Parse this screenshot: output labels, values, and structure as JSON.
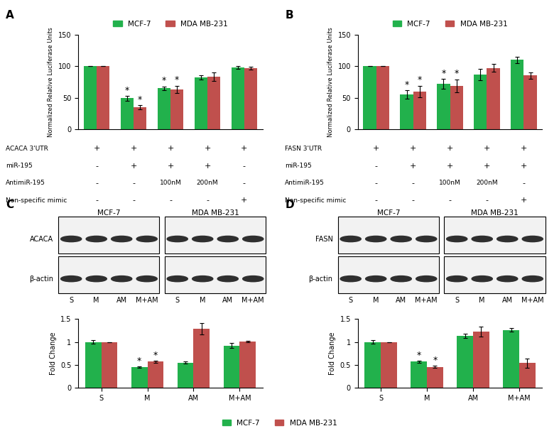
{
  "chart_data": [
    {
      "type": "bar",
      "panel_label": "A",
      "ylabel": "Normalized Relative Luciferase Units",
      "ylim": [
        0,
        150
      ],
      "yticks": [
        0,
        50,
        100,
        150
      ],
      "legend": "upper center",
      "tick_labels": "y",
      "significance_mark": "*",
      "series": [
        {
          "name": "MCF-7",
          "color": "#22b14c",
          "values": [
            100,
            49,
            65,
            82,
            98
          ],
          "errors": [
            0,
            4,
            3,
            3,
            2
          ],
          "significant": [
            1,
            2
          ]
        },
        {
          "name": "MDA MB-231",
          "color": "#c0504d",
          "values": [
            100,
            35,
            63,
            83,
            97
          ],
          "errors": [
            0,
            3,
            6,
            7,
            2
          ],
          "significant": [
            1,
            2
          ]
        }
      ],
      "conditions": [
        {
          "label": "ACACA 3'UTR",
          "cells": [
            "+",
            "+",
            "+",
            "+",
            "+"
          ]
        },
        {
          "label": "miR-195",
          "cells": [
            "-",
            "+",
            "+",
            "+",
            "-"
          ]
        },
        {
          "label": "AntimiR-195",
          "cells": [
            "-",
            "-",
            "100nM",
            "200nM",
            "-"
          ]
        },
        {
          "label": "Non-specific mimic",
          "cells": [
            "-",
            "-",
            "-",
            "-",
            "+"
          ]
        }
      ]
    },
    {
      "type": "bar",
      "panel_label": "B",
      "ylabel": "Normalized Relative Luciferase Units",
      "ylim": [
        0,
        150
      ],
      "yticks": [
        0,
        50,
        100,
        150
      ],
      "legend": "upper center",
      "tick_labels": "y",
      "significance_mark": "*",
      "series": [
        {
          "name": "MCF-7",
          "color": "#22b14c",
          "values": [
            100,
            55,
            72,
            87,
            110
          ],
          "errors": [
            0,
            7,
            8,
            9,
            5
          ],
          "significant": [
            1,
            2
          ]
        },
        {
          "name": "MDA MB-231",
          "color": "#c0504d",
          "values": [
            100,
            60,
            69,
            97,
            85
          ],
          "errors": [
            0,
            9,
            10,
            6,
            5
          ],
          "significant": [
            1,
            2
          ]
        }
      ],
      "conditions": [
        {
          "label": "FASN 3'UTR",
          "cells": [
            "+",
            "+",
            "+",
            "+",
            "+"
          ]
        },
        {
          "label": "miR-195",
          "cells": [
            "-",
            "+",
            "+",
            "+",
            "+"
          ]
        },
        {
          "label": "AntimiR-195",
          "cells": [
            "-",
            "-",
            "100nM",
            "200nM",
            "-"
          ]
        },
        {
          "label": "Non-specific mimic",
          "cells": [
            "-",
            "-",
            "-",
            "-",
            "+"
          ]
        }
      ]
    },
    {
      "type": "bar",
      "panel_label": "C",
      "ylabel": "Fold Change",
      "categories": [
        "S",
        "M",
        "AM",
        "M+AM"
      ],
      "ylim": [
        0,
        1.5
      ],
      "yticks": [
        0,
        0.5,
        1,
        1.5
      ],
      "legend": "lower center",
      "significance_mark": "*",
      "series": [
        {
          "name": "MCF-7",
          "color": "#22b14c",
          "values": [
            1.0,
            0.45,
            0.55,
            0.92
          ],
          "errors": [
            0.04,
            0.02,
            0.02,
            0.05
          ],
          "significant": [
            1
          ]
        },
        {
          "name": "MDA MB-231",
          "color": "#c0504d",
          "values": [
            1.0,
            0.57,
            1.29,
            1.01
          ],
          "errors": [
            0,
            0.02,
            0.12,
            0.01
          ],
          "significant": [
            1
          ]
        }
      ],
      "blot": {
        "cell_lines": [
          "MCF-7",
          "MDA MB-231"
        ],
        "proteins": [
          "ACACA",
          "β-actin"
        ],
        "lanes": [
          "S",
          "M",
          "AM",
          "M+AM"
        ]
      }
    },
    {
      "type": "bar",
      "panel_label": "D",
      "ylabel": "Fold Change",
      "categories": [
        "S",
        "M",
        "AM",
        "M+AM"
      ],
      "ylim": [
        0,
        1.5
      ],
      "yticks": [
        0,
        0.5,
        1,
        1.5
      ],
      "significance_mark": "*",
      "series": [
        {
          "name": "MCF-7",
          "color": "#22b14c",
          "values": [
            1.0,
            0.57,
            1.13,
            1.26
          ],
          "errors": [
            0.04,
            0.02,
            0.05,
            0.04
          ],
          "significant": [
            1
          ]
        },
        {
          "name": "MDA MB-231",
          "color": "#c0504d",
          "values": [
            1.0,
            0.46,
            1.22,
            0.54
          ],
          "errors": [
            0,
            0.03,
            0.11,
            0.1
          ],
          "significant": [
            1
          ]
        }
      ],
      "blot": {
        "cell_lines": [
          "MCF-7",
          "MDA MB-231"
        ],
        "proteins": [
          "FASN",
          "β-actin"
        ],
        "lanes": [
          "S",
          "M",
          "AM",
          "M+AM"
        ]
      }
    }
  ]
}
